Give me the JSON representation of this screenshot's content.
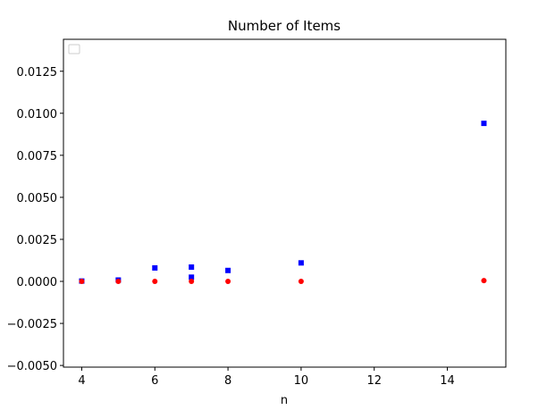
{
  "chart_data": {
    "type": "scatter",
    "title": "Number of Items",
    "xlabel": "n",
    "ylabel": "",
    "xlim": [
      3.5,
      15.6
    ],
    "ylim": [
      -0.0051,
      0.0144
    ],
    "xticks": [
      4,
      6,
      8,
      10,
      12,
      14
    ],
    "yticks": [
      -0.005,
      -0.0025,
      0.0,
      0.0025,
      0.005,
      0.0075,
      0.01,
      0.0125
    ],
    "xtick_labels": [
      "4",
      "6",
      "8",
      "10",
      "12",
      "14"
    ],
    "ytick_labels": [
      "−0.0050",
      "−0.0025",
      "0.0000",
      "0.0025",
      "0.0050",
      "0.0075",
      "0.0100",
      "0.0125"
    ],
    "grid": false,
    "legend": {
      "placement": "top-left",
      "entries": []
    },
    "series": [
      {
        "marker": "square",
        "color": "#0000ff",
        "points": [
          {
            "x": 4,
            "y": 2e-05
          },
          {
            "x": 5,
            "y": 8e-05
          },
          {
            "x": 6,
            "y": 0.0008
          },
          {
            "x": 7,
            "y": 0.00085
          },
          {
            "x": 7,
            "y": 0.00025
          },
          {
            "x": 8,
            "y": 0.00065
          },
          {
            "x": 10,
            "y": 0.0011
          },
          {
            "x": 15,
            "y": 0.0094
          }
        ]
      },
      {
        "marker": "circle",
        "color": "#ff0000",
        "points": [
          {
            "x": 4,
            "y": 0.0
          },
          {
            "x": 5,
            "y": 0.0
          },
          {
            "x": 6,
            "y": 0.0
          },
          {
            "x": 7,
            "y": 0.0
          },
          {
            "x": 8,
            "y": 0.0
          },
          {
            "x": 10,
            "y": 0.0
          },
          {
            "x": 15,
            "y": 5e-05
          }
        ]
      }
    ]
  }
}
